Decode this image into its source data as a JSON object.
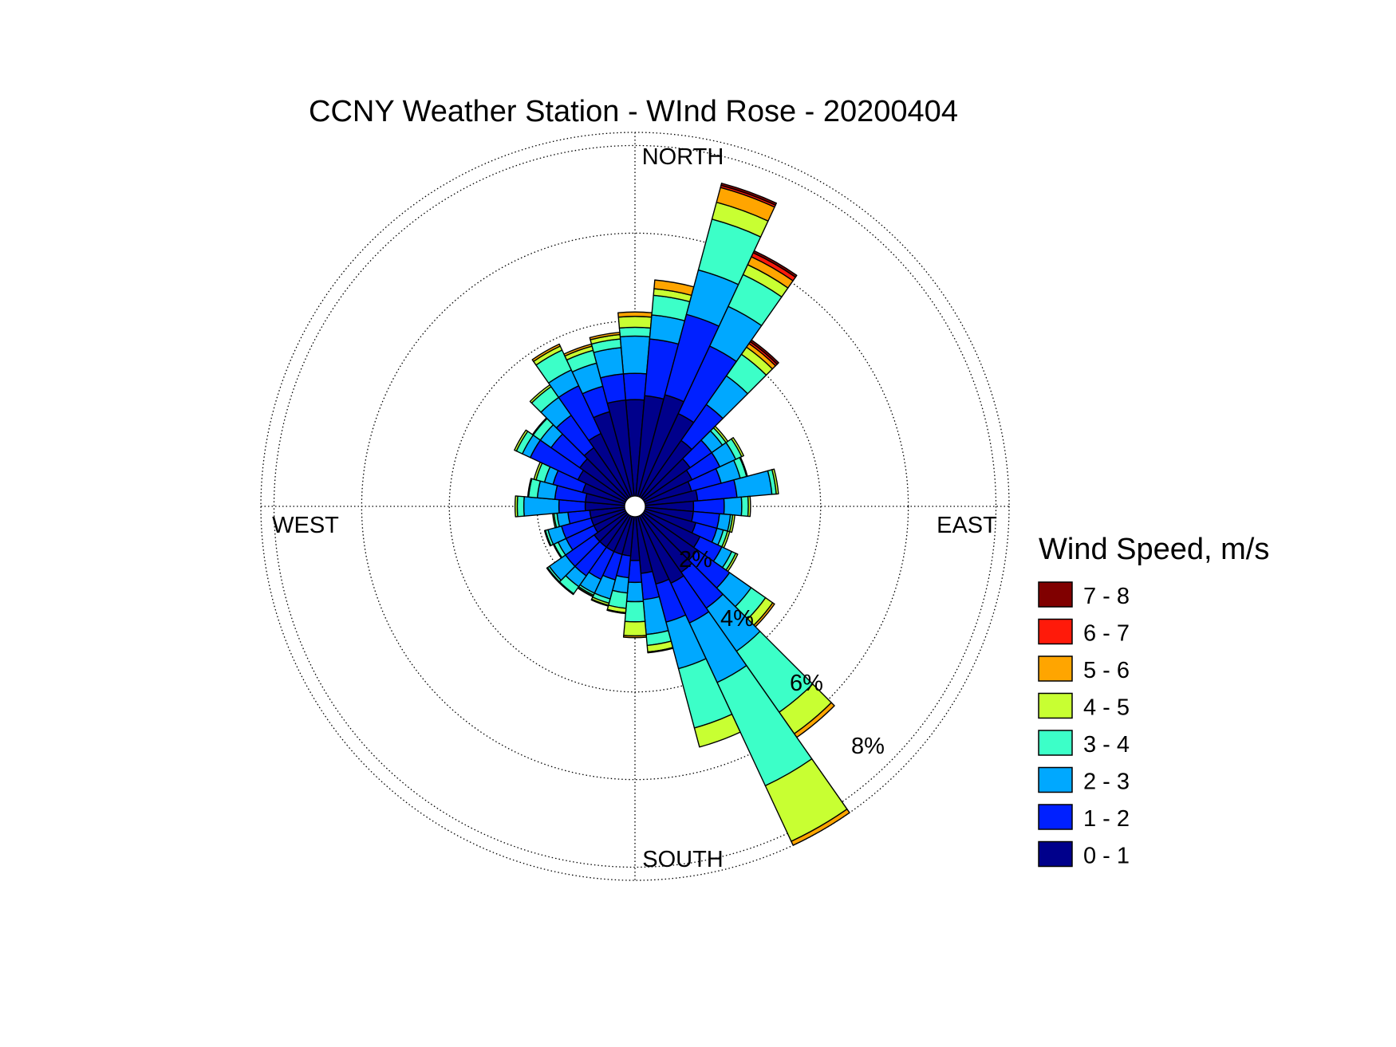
{
  "chart_data": {
    "type": "wind-rose",
    "title": "CCNY Weather Station - WInd Rose - 20200404",
    "direction_labels": {
      "north": "NORTH",
      "east": "EAST",
      "south": "SOUTH",
      "west": "WEST"
    },
    "radial_ticks": [
      2,
      4,
      6,
      8
    ],
    "radial_tick_labels": [
      "2%",
      "4%",
      "6%",
      "8%"
    ],
    "radial_max": 8.3,
    "sector_count": 36,
    "sector_width_deg": 10,
    "legend": {
      "title": "Wind Speed, m/s",
      "bins": [
        {
          "label": "7 - 8",
          "color": "#800000"
        },
        {
          "label": "6 - 7",
          "color": "#ff1a0a"
        },
        {
          "label": "5 - 6",
          "color": "#ffa500"
        },
        {
          "label": "4 - 5",
          "color": "#c8ff32"
        },
        {
          "label": "3 - 4",
          "color": "#3cffc8"
        },
        {
          "label": "2 - 3",
          "color": "#00a8ff"
        },
        {
          "label": "1 - 2",
          "color": "#0020ff"
        },
        {
          "label": "0 - 1",
          "color": "#00008b"
        }
      ]
    },
    "stack_order": [
      "0 - 1",
      "1 - 2",
      "2 - 3",
      "3 - 4",
      "4 - 5",
      "5 - 6",
      "6 - 7",
      "7 - 8"
    ],
    "sectors": [
      {
        "direction": 0,
        "cumulative": [
          2.2,
          2.8,
          3.65,
          3.85,
          4.1,
          4.2,
          4.2,
          4.2
        ]
      },
      {
        "direction": 10,
        "cumulative": [
          2.3,
          3.6,
          4.15,
          4.6,
          4.75,
          4.95,
          4.95,
          4.95
        ]
      },
      {
        "direction": 20,
        "cumulative": [
          2.4,
          4.3,
          5.35,
          6.55,
          6.95,
          7.3,
          7.35,
          7.4
        ]
      },
      {
        "direction": 30,
        "cumulative": [
          2.1,
          3.8,
          4.8,
          5.6,
          5.85,
          6.05,
          6.15,
          6.2
        ]
      },
      {
        "direction": 40,
        "cumulative": [
          1.6,
          2.6,
          3.4,
          4.0,
          4.2,
          4.3,
          4.35,
          4.4
        ]
      },
      {
        "direction": 50,
        "cumulative": [
          1.3,
          1.9,
          2.2,
          2.3,
          2.35,
          2.35,
          2.35,
          2.35
        ]
      },
      {
        "direction": 60,
        "cumulative": [
          1.2,
          1.9,
          2.3,
          2.45,
          2.5,
          2.5,
          2.5,
          2.5
        ]
      },
      {
        "direction": 70,
        "cumulative": [
          1.1,
          1.8,
          2.25,
          2.4,
          2.42,
          2.42,
          2.42,
          2.42
        ]
      },
      {
        "direction": 80,
        "cumulative": [
          1.2,
          2.1,
          2.9,
          3.0,
          3.05,
          3.05,
          3.05,
          3.05
        ]
      },
      {
        "direction": 90,
        "cumulative": [
          1.1,
          1.8,
          2.2,
          2.35,
          2.4,
          2.4,
          2.4,
          2.4
        ]
      },
      {
        "direction": 100,
        "cumulative": [
          1.1,
          1.7,
          1.95,
          2.0,
          2.05,
          2.05,
          2.05,
          2.05
        ]
      },
      {
        "direction": 110,
        "cumulative": [
          1.2,
          1.7,
          1.85,
          1.95,
          2.0,
          2.0,
          2.0,
          2.0
        ]
      },
      {
        "direction": 120,
        "cumulative": [
          1.4,
          1.95,
          2.2,
          2.3,
          2.35,
          2.35,
          2.35,
          2.35
        ]
      },
      {
        "direction": 130,
        "cumulative": [
          1.5,
          2.4,
          3.0,
          3.4,
          3.6,
          3.65,
          3.65,
          3.65
        ]
      },
      {
        "direction": 140,
        "cumulative": [
          1.6,
          2.6,
          3.8,
          5.5,
          6.1,
          6.2,
          6.2,
          6.2
        ]
      },
      {
        "direction": 150,
        "cumulative": [
          1.7,
          2.7,
          4.2,
          6.8,
          8.2,
          8.3,
          8.3,
          8.3
        ]
      },
      {
        "direction": 160,
        "cumulative": [
          1.6,
          2.5,
          3.6,
          5.0,
          5.45,
          5.45,
          5.45,
          5.45
        ]
      },
      {
        "direction": 170,
        "cumulative": [
          1.3,
          1.9,
          2.7,
          2.95,
          3.1,
          3.12,
          3.12,
          3.12
        ]
      },
      {
        "direction": 180,
        "cumulative": [
          1.0,
          1.5,
          1.94,
          2.4,
          2.72,
          2.76,
          2.76,
          2.76
        ]
      },
      {
        "direction": 190,
        "cumulative": [
          0.9,
          1.4,
          1.75,
          2.1,
          2.2,
          2.22,
          2.22,
          2.22
        ]
      },
      {
        "direction": 200,
        "cumulative": [
          0.9,
          1.5,
          1.95,
          2.05,
          2.1,
          2.12,
          2.12,
          2.12
        ]
      },
      {
        "direction": 210,
        "cumulative": [
          0.9,
          1.6,
          1.95,
          2.0,
          2.03,
          2.04,
          2.04,
          2.04
        ]
      },
      {
        "direction": 220,
        "cumulative": [
          0.9,
          1.7,
          2.0,
          2.2,
          2.22,
          2.22,
          2.22,
          2.22
        ]
      },
      {
        "direction": 230,
        "cumulative": [
          0.9,
          1.7,
          2.15,
          2.2,
          2.22,
          2.22,
          2.22,
          2.22
        ]
      },
      {
        "direction": 240,
        "cumulative": [
          0.8,
          1.5,
          1.7,
          1.8,
          1.82,
          1.82,
          1.82,
          1.82
        ]
      },
      {
        "direction": 250,
        "cumulative": [
          0.8,
          1.5,
          1.82,
          1.88,
          1.9,
          1.9,
          1.9,
          1.9
        ]
      },
      {
        "direction": 260,
        "cumulative": [
          0.8,
          1.3,
          1.55,
          1.62,
          1.65,
          1.65,
          1.65,
          1.65
        ]
      },
      {
        "direction": 270,
        "cumulative": [
          0.9,
          1.5,
          2.3,
          2.45,
          2.5,
          2.5,
          2.5,
          2.5
        ]
      },
      {
        "direction": 280,
        "cumulative": [
          0.9,
          1.6,
          2.0,
          2.2,
          2.22,
          2.22,
          2.22,
          2.22
        ]
      },
      {
        "direction": 290,
        "cumulative": [
          1.0,
          1.7,
          1.9,
          2.1,
          2.15,
          2.15,
          2.15,
          2.15
        ]
      },
      {
        "direction": 300,
        "cumulative": [
          1.2,
          2.4,
          2.6,
          2.75,
          2.8,
          2.8,
          2.8,
          2.8
        ]
      },
      {
        "direction": 310,
        "cumulative": [
          1.3,
          2.1,
          2.4,
          2.6,
          2.62,
          2.62,
          2.62,
          2.62
        ]
      },
      {
        "direction": 320,
        "cumulative": [
          1.4,
          2.3,
          2.8,
          3.1,
          3.15,
          3.15,
          3.15,
          3.15
        ]
      },
      {
        "direction": 330,
        "cumulative": [
          1.6,
          2.8,
          3.2,
          3.7,
          3.8,
          3.85,
          3.85,
          3.85
        ]
      },
      {
        "direction": 340,
        "cumulative": [
          2.0,
          2.6,
          3.15,
          3.45,
          3.55,
          3.6,
          3.6,
          3.6
        ]
      },
      {
        "direction": 350,
        "cumulative": [
          2.2,
          2.8,
          3.4,
          3.6,
          3.7,
          3.75,
          3.75,
          3.75
        ]
      }
    ]
  }
}
